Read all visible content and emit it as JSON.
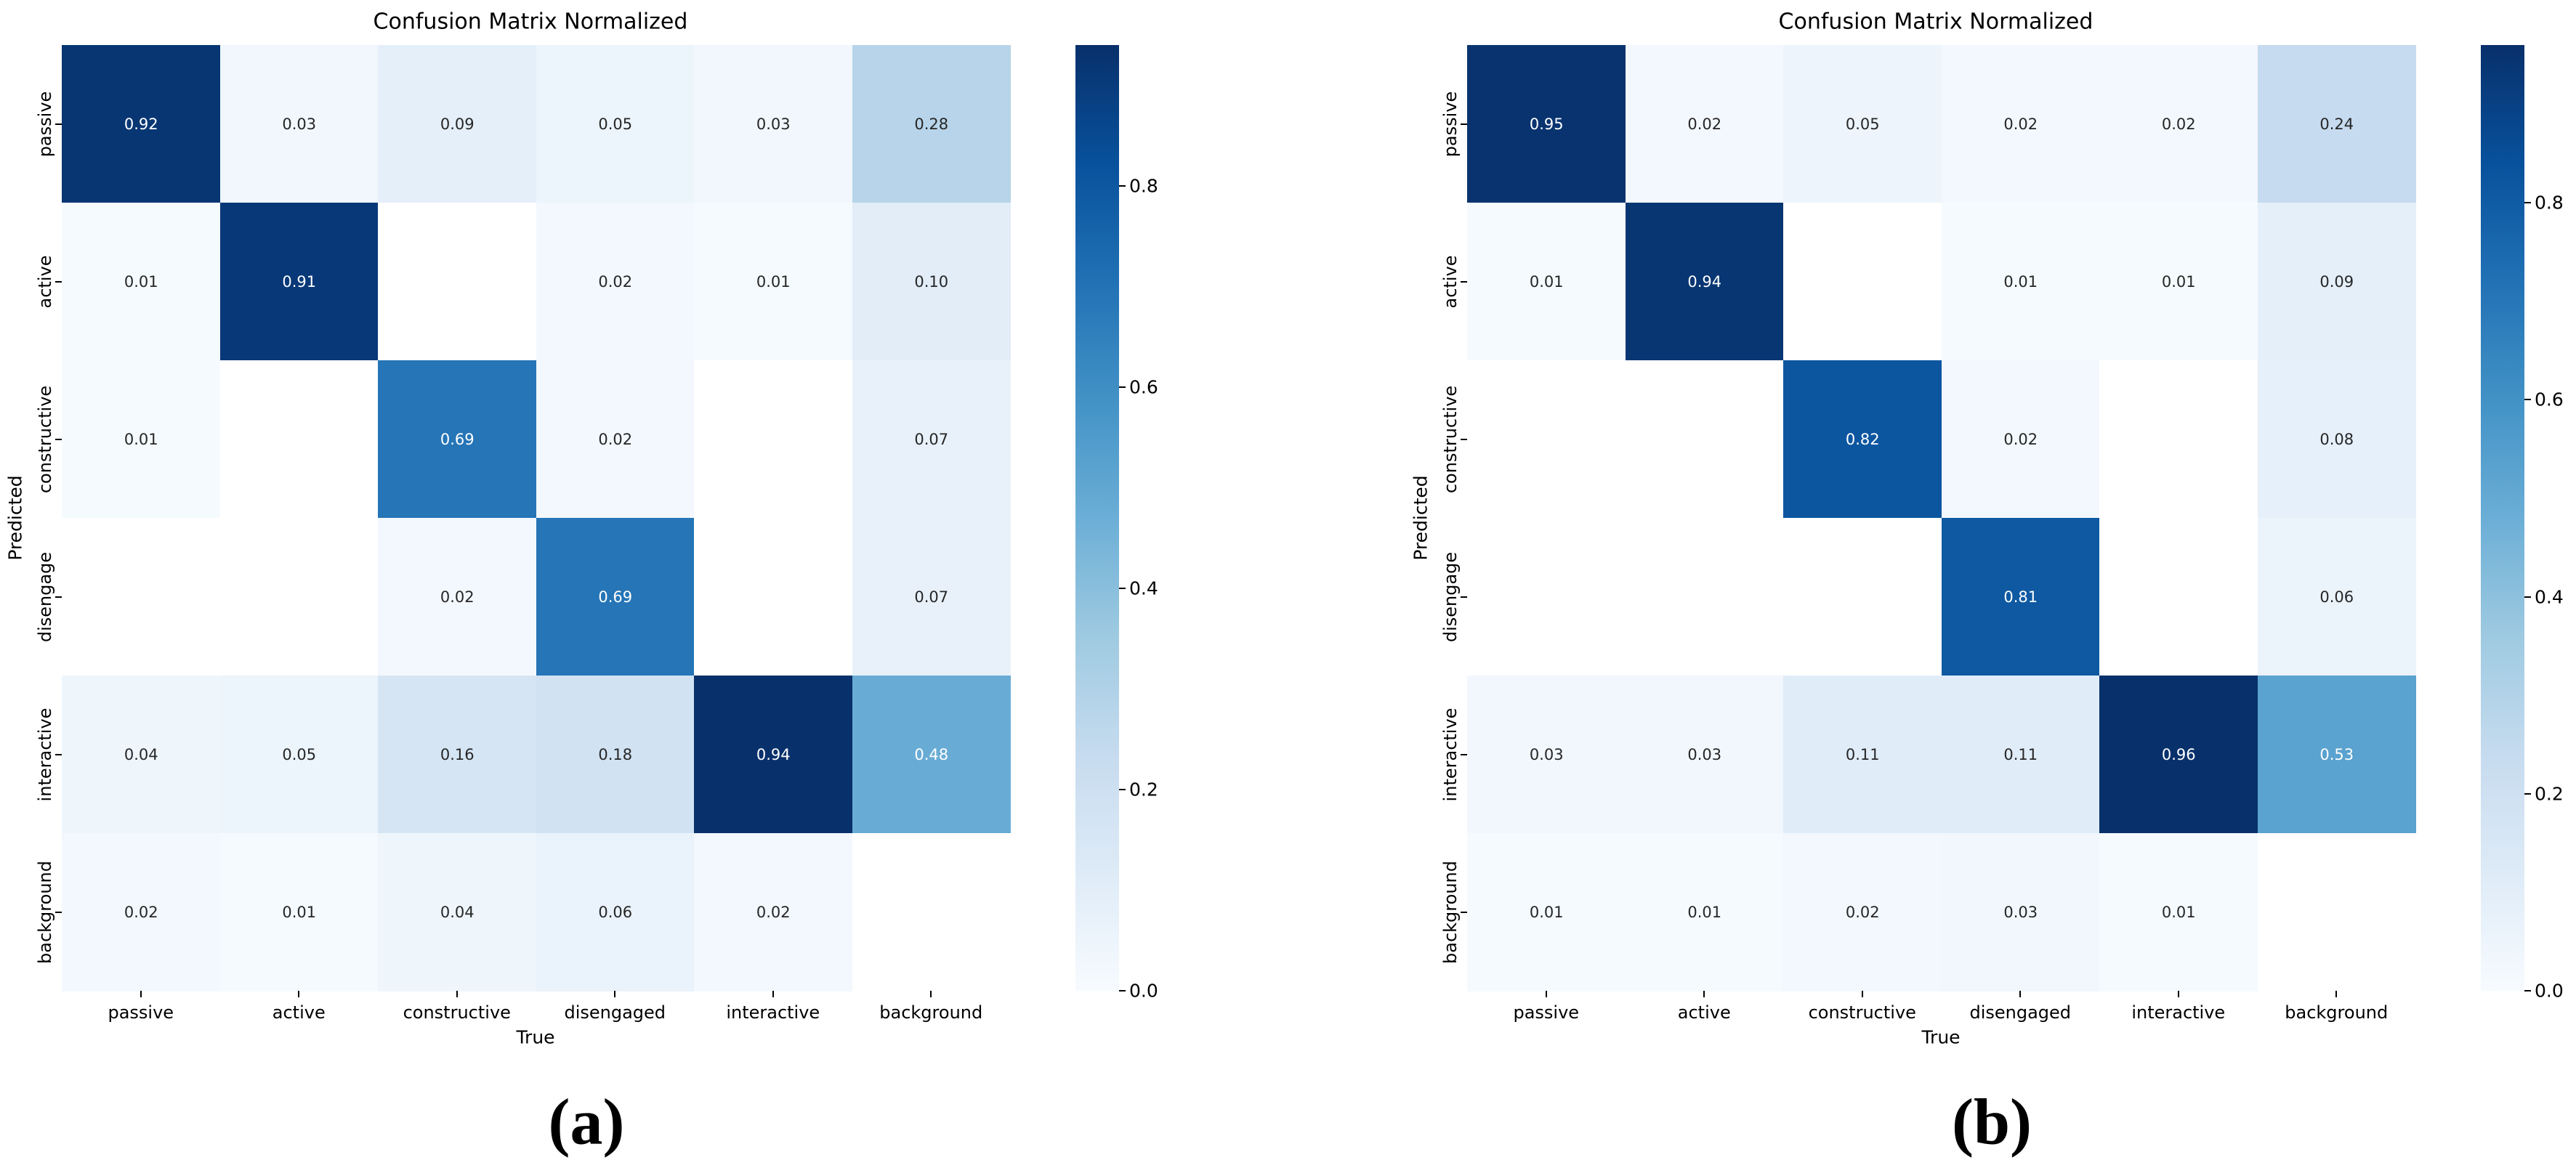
{
  "figure": {
    "background_color": "#ffffff",
    "description": "Two normalized confusion matrix heatmaps side by side with Blues colorbars"
  },
  "colormap": {
    "name": "Blues",
    "anchors": [
      "#f7fbff",
      "#deebf7",
      "#c6dbef",
      "#9ecae1",
      "#6baed6",
      "#4292c6",
      "#2171b5",
      "#08519c",
      "#08306b"
    ]
  },
  "colors": {
    "annot_dark": "#262626",
    "annot_light": "#ffffff",
    "tick_color": "#000000",
    "empty_cell": "#ffffff"
  },
  "chart_data": [
    {
      "type": "heatmap",
      "panel_label": "(a)",
      "title": "Confusion Matrix Normalized",
      "xlabel": "True",
      "ylabel": "Predicted",
      "x_categories": [
        "passive",
        "active",
        "constructive",
        "disengaged",
        "interactive",
        "background"
      ],
      "y_categories": [
        "passive",
        "active",
        "constructive",
        "disengage",
        "interactive",
        "background"
      ],
      "values": [
        [
          0.92,
          0.03,
          0.09,
          0.05,
          0.03,
          0.28
        ],
        [
          0.01,
          0.91,
          null,
          0.02,
          0.01,
          0.1
        ],
        [
          0.01,
          null,
          0.69,
          0.02,
          null,
          0.07
        ],
        [
          null,
          null,
          0.02,
          0.69,
          null,
          0.07
        ],
        [
          0.04,
          0.05,
          0.16,
          0.18,
          0.94,
          0.48
        ],
        [
          0.02,
          0.01,
          0.04,
          0.06,
          0.02,
          null
        ]
      ],
      "vmin": 0.0,
      "vmax": 0.94,
      "colorbar_ticks": [
        0.8,
        0.6,
        0.4,
        0.2,
        0.0
      ],
      "legend_position": "right-colorbar",
      "grid": false
    },
    {
      "type": "heatmap",
      "panel_label": "(b)",
      "title": "Confusion Matrix Normalized",
      "xlabel": "True",
      "ylabel": "Predicted",
      "x_categories": [
        "passive",
        "active",
        "constructive",
        "disengaged",
        "interactive",
        "background"
      ],
      "y_categories": [
        "passive",
        "active",
        "constructive",
        "disengage",
        "interactive",
        "background"
      ],
      "values": [
        [
          0.95,
          0.02,
          0.05,
          0.02,
          0.02,
          0.24
        ],
        [
          0.01,
          0.94,
          null,
          0.01,
          0.01,
          0.09
        ],
        [
          null,
          null,
          0.82,
          0.02,
          null,
          0.08
        ],
        [
          null,
          null,
          null,
          0.81,
          null,
          0.06
        ],
        [
          0.03,
          0.03,
          0.11,
          0.11,
          0.96,
          0.53
        ],
        [
          0.01,
          0.01,
          0.02,
          0.03,
          0.01,
          null
        ]
      ],
      "vmin": 0.0,
      "vmax": 0.96,
      "colorbar_ticks": [
        0.8,
        0.6,
        0.4,
        0.2,
        0.0
      ],
      "legend_position": "right-colorbar",
      "grid": false
    }
  ]
}
